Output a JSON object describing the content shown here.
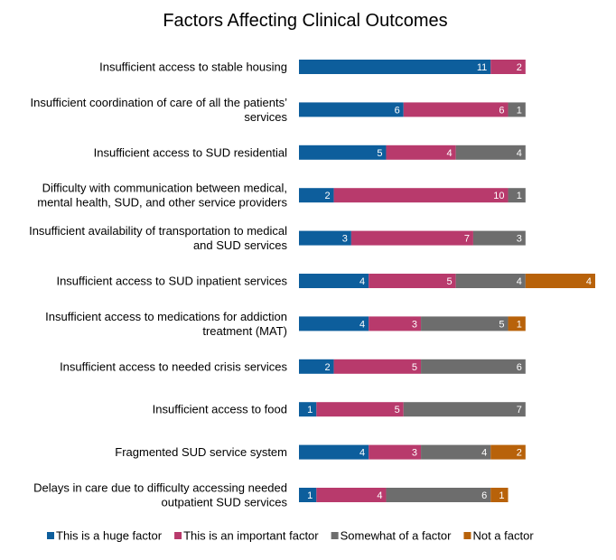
{
  "chart_data": {
    "type": "bar",
    "orientation": "horizontal",
    "stacked": true,
    "title": "Factors Affecting Clinical Outcomes",
    "categories": [
      [
        "Insufficient access to stable housing"
      ],
      [
        "Insufficient coordination of care of all the patients’",
        "services"
      ],
      [
        "Insufficient access to SUD residential"
      ],
      [
        "Difficulty with communication between medical,",
        "mental health, SUD, and other service providers"
      ],
      [
        "Insufficient availability of transportation to medical",
        "and SUD services"
      ],
      [
        "Insufficient access to SUD inpatient services"
      ],
      [
        "Insufficient access to medications for addiction",
        "treatment (MAT)"
      ],
      [
        "Insufficient access to needed crisis services"
      ],
      [
        "Insufficient access to food"
      ],
      [
        "Fragmented SUD service system"
      ],
      [
        "Delays in care due to difficulty accessing needed",
        "outpatient SUD services"
      ]
    ],
    "series": [
      {
        "name": "This is a huge factor",
        "color": "#0d5e9c",
        "values": [
          11,
          6,
          5,
          2,
          3,
          4,
          4,
          2,
          1,
          4,
          1
        ]
      },
      {
        "name": "This is an important factor",
        "color": "#b83a6c",
        "values": [
          2,
          6,
          4,
          10,
          7,
          5,
          3,
          5,
          5,
          3,
          4
        ]
      },
      {
        "name": "Somewhat of a factor",
        "color": "#6d6d6d",
        "values": [
          0,
          1,
          4,
          1,
          3,
          4,
          5,
          6,
          7,
          4,
          6
        ]
      },
      {
        "name": "Not a factor",
        "color": "#b8620a",
        "values": [
          0,
          0,
          0,
          0,
          0,
          4,
          1,
          0,
          0,
          2,
          1
        ]
      }
    ],
    "legend": "bottom",
    "grid": false
  }
}
